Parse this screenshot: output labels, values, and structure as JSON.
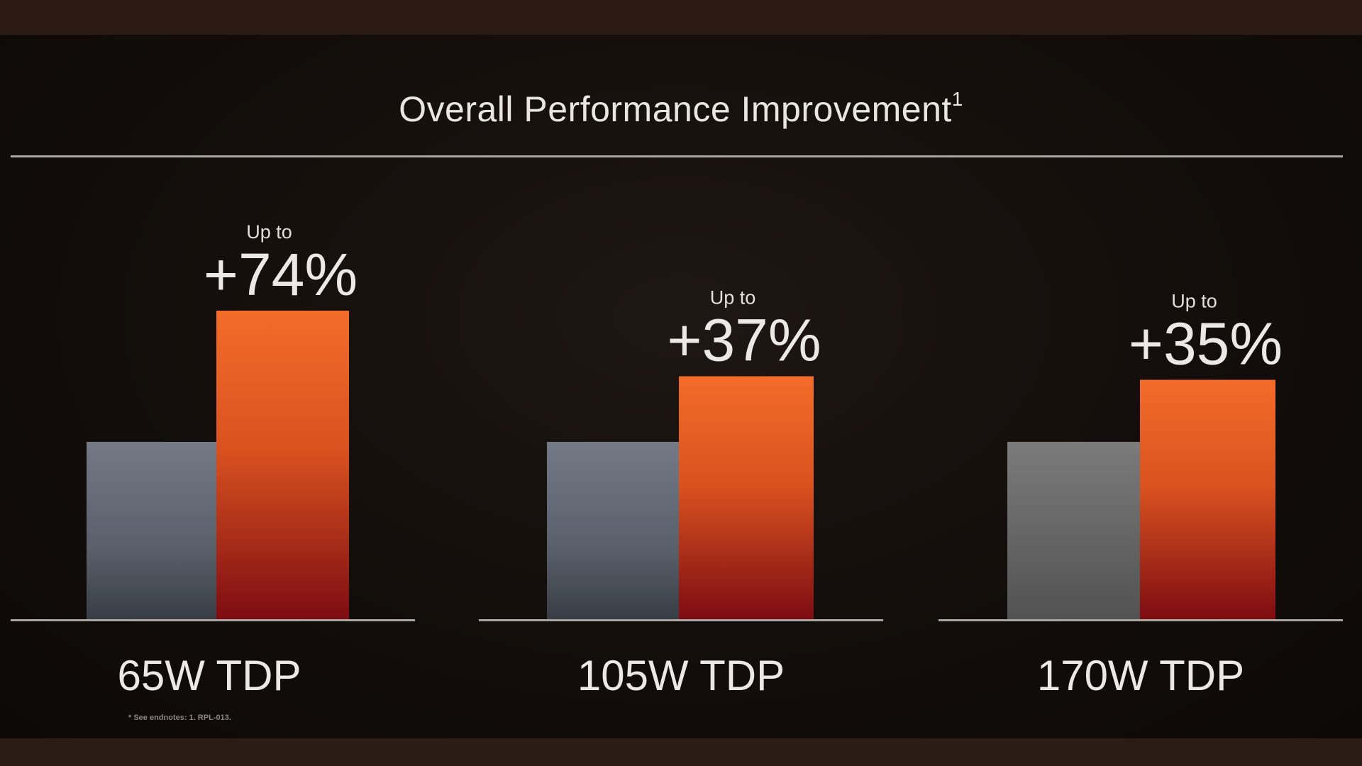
{
  "title": "Overall Performance Improvement",
  "title_superscript": "1",
  "footnote": "* See endnotes: 1. RPL-013.",
  "colors": {
    "accent_top": "#f36c2a",
    "accent_bottom": "#7d0c12",
    "baseline_top": "#717884",
    "baseline_bottom": "#3a3f46",
    "text": "#ebe8e5"
  },
  "chart_data": {
    "type": "bar",
    "categories": [
      "65W TDP",
      "105W TDP",
      "170W TDP"
    ],
    "series": [
      {
        "values": [
          100,
          100,
          100
        ],
        "color": "gray"
      },
      {
        "values": [
          174,
          137,
          135
        ],
        "color": "orange-red gradient"
      }
    ],
    "annotations": [
      {
        "category": "65W TDP",
        "prefix": "Up to",
        "label": "+74%"
      },
      {
        "category": "105W TDP",
        "prefix": "Up to",
        "label": "+37%"
      },
      {
        "category": "170W TDP",
        "prefix": "Up to",
        "label": "+35%"
      }
    ],
    "ylim": [
      0,
      174
    ],
    "grid": false,
    "legend": "none"
  }
}
